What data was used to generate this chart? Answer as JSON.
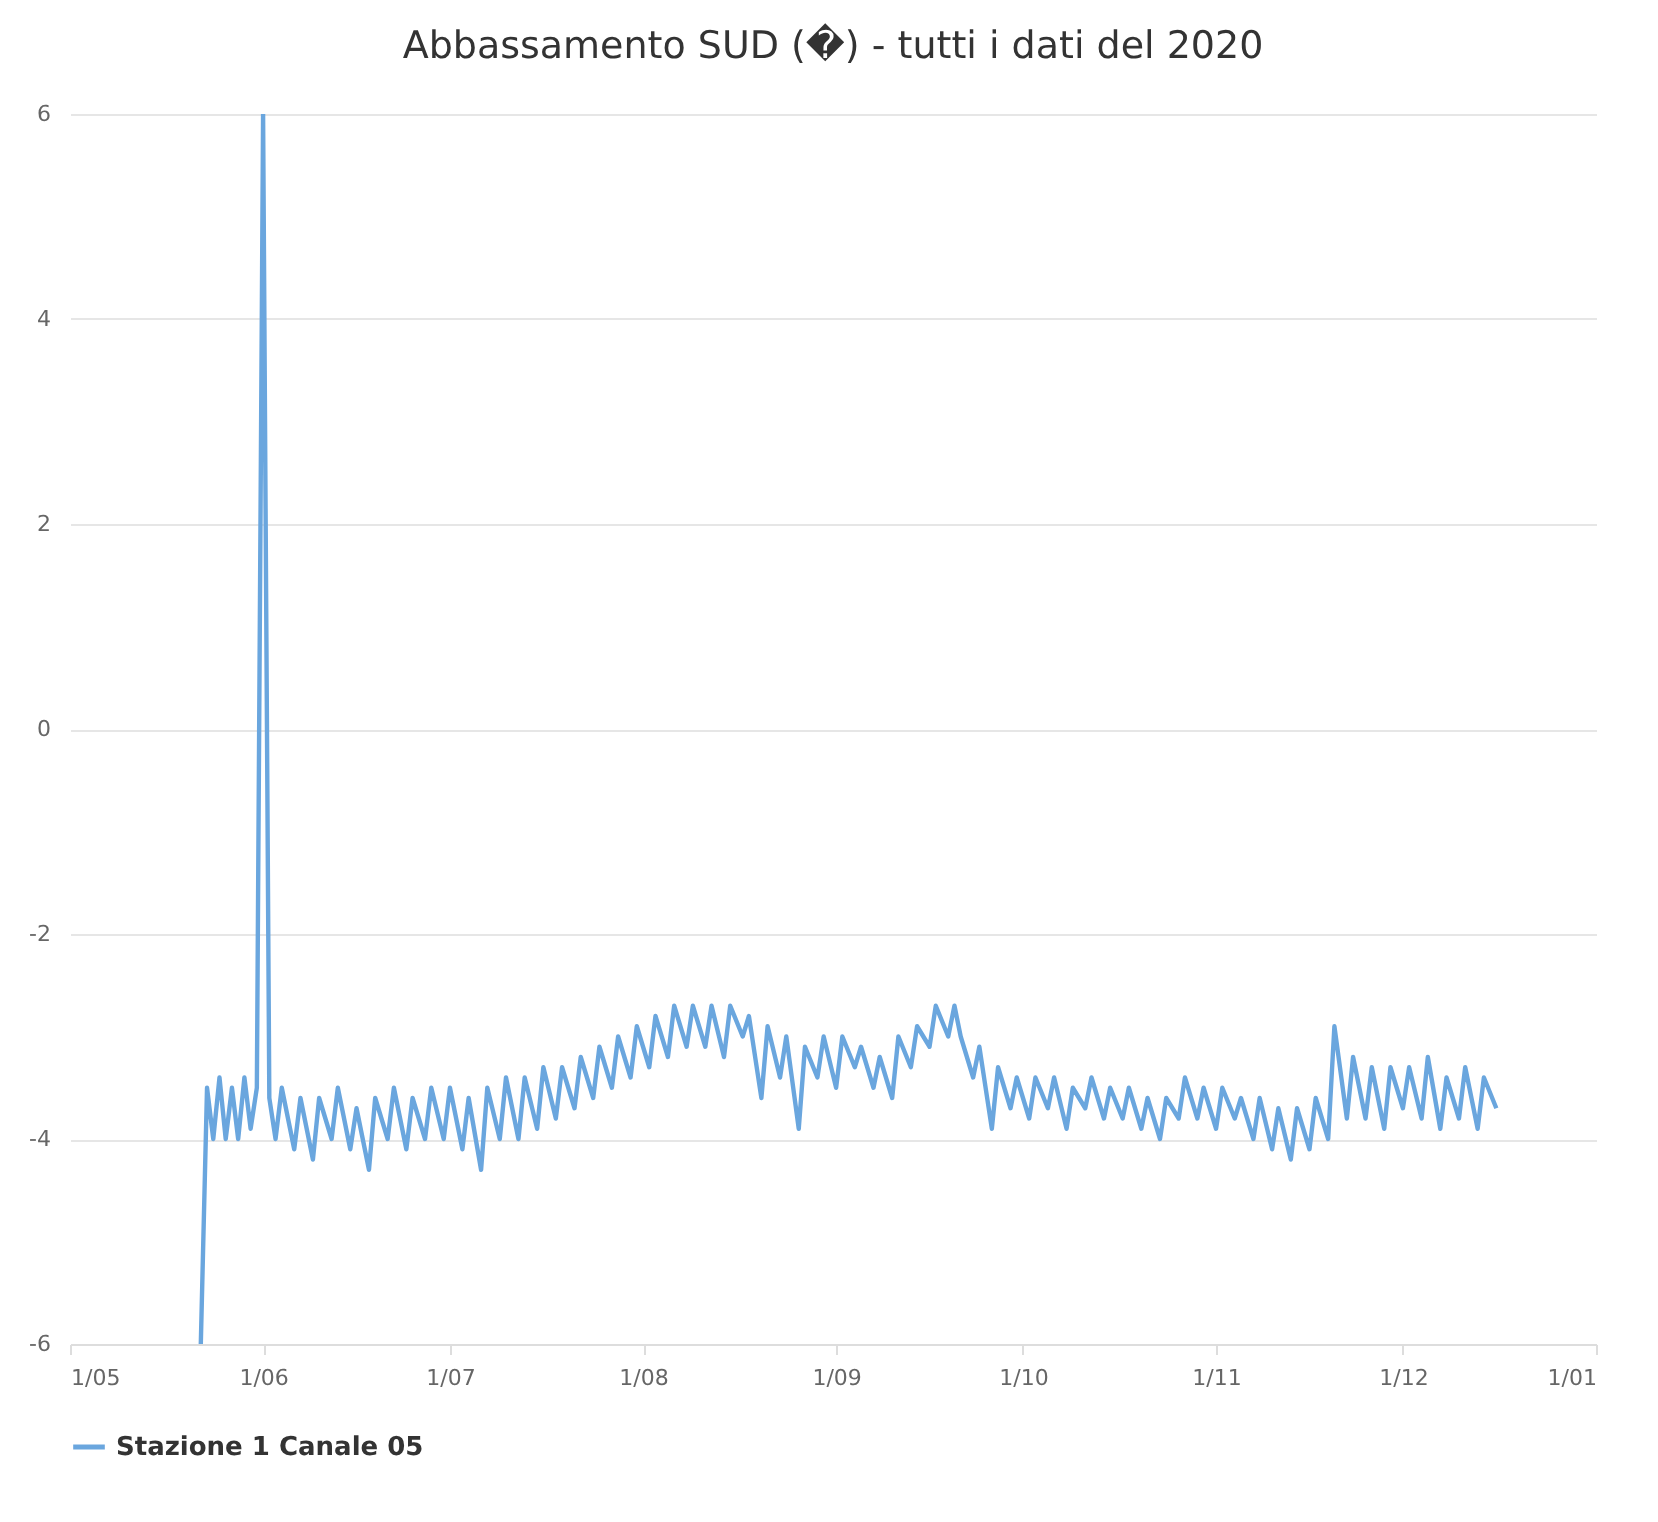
{
  "chart_data": {
    "type": "line",
    "title": "Abbassamento SUD (�) - tutti i dati del 2020",
    "x": [
      "2020-05-22",
      "2020-05-23",
      "2020-05-24",
      "2020-05-25",
      "2020-05-26",
      "2020-05-27",
      "2020-05-28",
      "2020-05-29",
      "2020-05-30",
      "2020-05-31",
      "2020-06-01",
      "2020-06-02",
      "2020-06-03",
      "2020-06-04",
      "2020-06-06",
      "2020-06-07",
      "2020-06-09",
      "2020-06-10",
      "2020-06-12",
      "2020-06-13",
      "2020-06-15",
      "2020-06-16",
      "2020-06-18",
      "2020-06-19",
      "2020-06-21",
      "2020-06-22",
      "2020-06-24",
      "2020-06-25",
      "2020-06-27",
      "2020-06-28",
      "2020-06-30",
      "2020-07-01",
      "2020-07-03",
      "2020-07-04",
      "2020-07-06",
      "2020-07-07",
      "2020-07-09",
      "2020-07-10",
      "2020-07-12",
      "2020-07-13",
      "2020-07-15",
      "2020-07-16",
      "2020-07-18",
      "2020-07-19",
      "2020-07-21",
      "2020-07-22",
      "2020-07-24",
      "2020-07-25",
      "2020-07-27",
      "2020-07-28",
      "2020-07-30",
      "2020-07-31",
      "2020-08-02",
      "2020-08-03",
      "2020-08-05",
      "2020-08-06",
      "2020-08-08",
      "2020-08-09",
      "2020-08-11",
      "2020-08-12",
      "2020-08-14",
      "2020-08-15",
      "2020-08-17",
      "2020-08-18",
      "2020-08-20",
      "2020-08-21",
      "2020-08-23",
      "2020-08-24",
      "2020-08-26",
      "2020-08-27",
      "2020-08-29",
      "2020-08-30",
      "2020-09-01",
      "2020-09-02",
      "2020-09-04",
      "2020-09-05",
      "2020-09-07",
      "2020-09-08",
      "2020-09-10",
      "2020-09-11",
      "2020-09-13",
      "2020-09-14",
      "2020-09-16",
      "2020-09-17",
      "2020-09-19",
      "2020-09-20",
      "2020-09-21",
      "2020-09-23",
      "2020-09-24",
      "2020-09-26",
      "2020-09-27",
      "2020-09-29",
      "2020-09-30",
      "2020-10-02",
      "2020-10-03",
      "2020-10-05",
      "2020-10-06",
      "2020-10-08",
      "2020-10-09",
      "2020-10-11",
      "2020-10-12",
      "2020-10-14",
      "2020-10-15",
      "2020-10-17",
      "2020-10-18",
      "2020-10-20",
      "2020-10-21",
      "2020-10-23",
      "2020-10-24",
      "2020-10-26",
      "2020-10-27",
      "2020-10-29",
      "2020-10-30",
      "2020-11-01",
      "2020-11-02",
      "2020-11-04",
      "2020-11-05",
      "2020-11-07",
      "2020-11-08",
      "2020-11-10",
      "2020-11-11",
      "2020-11-13",
      "2020-11-14",
      "2020-11-16",
      "2020-11-17",
      "2020-11-19",
      "2020-11-20",
      "2020-11-22",
      "2020-11-23",
      "2020-11-25",
      "2020-11-26",
      "2020-11-28",
      "2020-11-29",
      "2020-12-01",
      "2020-12-02",
      "2020-12-04",
      "2020-12-05",
      "2020-12-07",
      "2020-12-08",
      "2020-12-10",
      "2020-12-11",
      "2020-12-13",
      "2020-12-14",
      "2020-12-16"
    ],
    "series": [
      {
        "name": "Stazione 1 Canale 05",
        "color": "#6aa6de",
        "values": [
          -6,
          -3.5,
          -4.0,
          -3.4,
          -4.0,
          -3.5,
          -4.0,
          -3.4,
          -3.9,
          -3.5,
          6,
          -3.6,
          -4.0,
          -3.5,
          -4.1,
          -3.6,
          -4.2,
          -3.6,
          -4.0,
          -3.5,
          -4.1,
          -3.7,
          -4.3,
          -3.6,
          -4.0,
          -3.5,
          -4.1,
          -3.6,
          -4.0,
          -3.5,
          -4.0,
          -3.5,
          -4.1,
          -3.6,
          -4.3,
          -3.5,
          -4.0,
          -3.4,
          -4.0,
          -3.4,
          -3.9,
          -3.3,
          -3.8,
          -3.3,
          -3.7,
          -3.2,
          -3.6,
          -3.1,
          -3.5,
          -3.0,
          -3.4,
          -2.9,
          -3.3,
          -2.8,
          -3.2,
          -2.7,
          -3.1,
          -2.7,
          -3.1,
          -2.7,
          -3.2,
          -2.7,
          -3.0,
          -2.8,
          -3.6,
          -2.9,
          -3.4,
          -3.0,
          -3.9,
          -3.1,
          -3.4,
          -3.0,
          -3.5,
          -3.0,
          -3.3,
          -3.1,
          -3.5,
          -3.2,
          -3.6,
          -3.0,
          -3.3,
          -2.9,
          -3.1,
          -2.7,
          -3.0,
          -2.7,
          -3.0,
          -3.4,
          -3.1,
          -3.9,
          -3.3,
          -3.7,
          -3.4,
          -3.8,
          -3.4,
          -3.7,
          -3.4,
          -3.9,
          -3.5,
          -3.7,
          -3.4,
          -3.8,
          -3.5,
          -3.8,
          -3.5,
          -3.9,
          -3.6,
          -4.0,
          -3.6,
          -3.8,
          -3.4,
          -3.8,
          -3.5,
          -3.9,
          -3.5,
          -3.8,
          -3.6,
          -4.0,
          -3.6,
          -4.1,
          -3.7,
          -4.2,
          -3.7,
          -4.1,
          -3.6,
          -4.0,
          -2.9,
          -3.8,
          -3.2,
          -3.8,
          -3.3,
          -3.9,
          -3.3,
          -3.7,
          -3.3,
          -3.8,
          -3.2,
          -3.9,
          -3.4,
          -3.8,
          -3.3,
          -3.9,
          -3.4,
          -3.7
        ]
      }
    ],
    "xlim": [
      "2020-05-01",
      "2021-01-01"
    ],
    "xticks": [
      {
        "value": "2020-05-01",
        "label": "1/05"
      },
      {
        "value": "2020-06-01",
        "label": "1/06"
      },
      {
        "value": "2020-07-01",
        "label": "1/07"
      },
      {
        "value": "2020-08-01",
        "label": "1/08"
      },
      {
        "value": "2020-09-01",
        "label": "1/09"
      },
      {
        "value": "2020-10-01",
        "label": "1/10"
      },
      {
        "value": "2020-11-01",
        "label": "1/11"
      },
      {
        "value": "2020-12-01",
        "label": "1/12"
      },
      {
        "value": "2021-01-01",
        "label": "1/01"
      }
    ],
    "ylim": [
      -6,
      6
    ],
    "yticks": [
      -6,
      -4,
      -2,
      0,
      2,
      4,
      6
    ],
    "grid": "y",
    "legend": "bottom"
  }
}
